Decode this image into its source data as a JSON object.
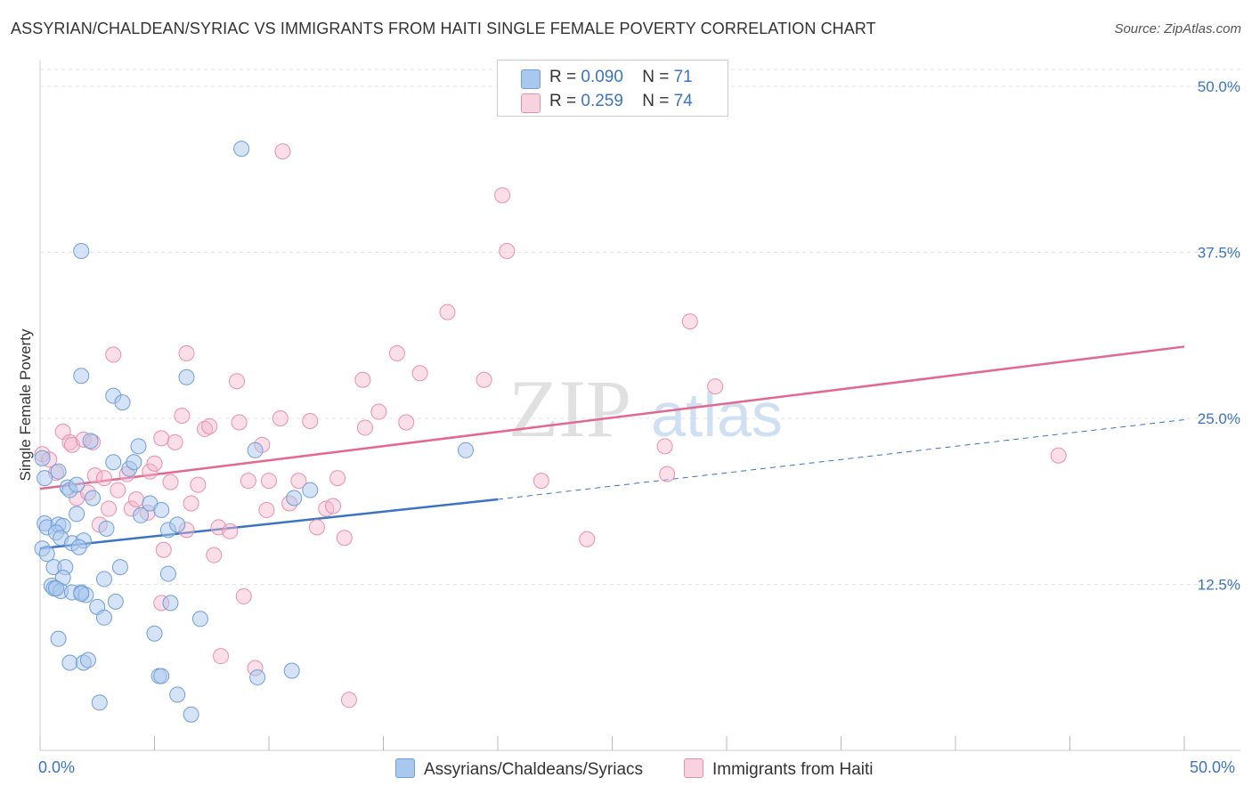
{
  "header": {
    "title": "ASSYRIAN/CHALDEAN/SYRIAC VS IMMIGRANTS FROM HAITI SINGLE FEMALE POVERTY CORRELATION CHART",
    "source": "Source: ZipAtlas.com"
  },
  "legend": {
    "row1": {
      "r_label": "R = ",
      "r_value": "0.090",
      "n_label": "N = ",
      "n_value": "71"
    },
    "row2": {
      "r_label": "R = ",
      "r_value": "0.259",
      "n_label": "N = ",
      "n_value": "74"
    }
  },
  "watermark": {
    "zip": "ZIP",
    "atlas": "atlas"
  },
  "colors": {
    "blue_fill": "#a9c8ee",
    "blue_stroke": "#6f9fd8",
    "blue_line": "#3a74c4",
    "pink_fill": "#f4b9cc",
    "pink_stroke": "#e98fae",
    "pink_line": "#e2688f",
    "axis_text": "#3a74c4"
  },
  "chart_data": {
    "type": "scatter",
    "title": "ASSYRIAN/CHALDEAN/SYRIAC VS IMMIGRANTS FROM HAITI SINGLE FEMALE POVERTY CORRELATION CHART",
    "xlabel": "",
    "ylabel": "Single Female Poverty",
    "xlim": [
      0,
      50
    ],
    "ylim": [
      0,
      50
    ],
    "x_tick_labels": [
      "0.0%",
      "50.0%"
    ],
    "y_tick_labels": [
      "50.0%",
      "37.5%",
      "25.0%",
      "12.5%"
    ],
    "y_ticks": [
      50,
      37.5,
      25,
      12.5
    ],
    "grid": true,
    "legend_position": "top-center",
    "series": [
      {
        "name": "Assyrians/Chaldeans/Syriacs",
        "color": "#6f9fd8",
        "R": 0.09,
        "N": 71,
        "trend": {
          "x_start": 0,
          "y_start": 15.2,
          "x_solid_end": 20,
          "y_solid_end": 18.9,
          "x_end": 50,
          "y_end": 24.9
        },
        "points": [
          [
            8.8,
            45.3
          ],
          [
            1.8,
            37.6
          ],
          [
            1.8,
            28.2
          ],
          [
            6.4,
            28.1
          ],
          [
            3.2,
            26.7
          ],
          [
            3.6,
            26.2
          ],
          [
            0.1,
            22.0
          ],
          [
            0.2,
            20.5
          ],
          [
            2.2,
            23.3
          ],
          [
            4.3,
            22.9
          ],
          [
            3.2,
            21.7
          ],
          [
            3.9,
            21.2
          ],
          [
            0.8,
            21.0
          ],
          [
            1.2,
            19.8
          ],
          [
            1.3,
            19.6
          ],
          [
            2.3,
            19.0
          ],
          [
            4.8,
            18.6
          ],
          [
            5.3,
            18.1
          ],
          [
            4.4,
            17.7
          ],
          [
            1.6,
            17.8
          ],
          [
            0.2,
            17.1
          ],
          [
            0.3,
            16.8
          ],
          [
            0.8,
            17.0
          ],
          [
            1.0,
            16.9
          ],
          [
            0.7,
            16.4
          ],
          [
            0.9,
            16.0
          ],
          [
            1.4,
            15.6
          ],
          [
            1.9,
            15.8
          ],
          [
            1.7,
            15.3
          ],
          [
            5.6,
            16.6
          ],
          [
            6.0,
            17.0
          ],
          [
            2.9,
            16.7
          ],
          [
            0.1,
            15.2
          ],
          [
            0.3,
            14.8
          ],
          [
            0.6,
            13.8
          ],
          [
            1.1,
            13.8
          ],
          [
            1.0,
            13.0
          ],
          [
            0.5,
            12.4
          ],
          [
            0.6,
            12.2
          ],
          [
            0.9,
            12.0
          ],
          [
            1.4,
            11.9
          ],
          [
            1.8,
            11.9
          ],
          [
            2.0,
            11.7
          ],
          [
            1.8,
            11.8
          ],
          [
            0.7,
            12.2
          ],
          [
            3.5,
            13.8
          ],
          [
            5.6,
            13.3
          ],
          [
            2.8,
            12.9
          ],
          [
            3.3,
            11.2
          ],
          [
            5.7,
            11.1
          ],
          [
            2.5,
            10.8
          ],
          [
            2.8,
            10.0
          ],
          [
            7.0,
            9.9
          ],
          [
            0.8,
            8.4
          ],
          [
            5.0,
            8.8
          ],
          [
            1.3,
            6.6
          ],
          [
            1.9,
            6.6
          ],
          [
            2.1,
            6.8
          ],
          [
            5.2,
            5.6
          ],
          [
            5.3,
            5.6
          ],
          [
            9.5,
            5.5
          ],
          [
            11.0,
            6.0
          ],
          [
            6.0,
            4.2
          ],
          [
            2.6,
            3.6
          ],
          [
            6.6,
            2.7
          ],
          [
            9.4,
            22.6
          ],
          [
            18.6,
            22.6
          ],
          [
            11.1,
            19.0
          ],
          [
            11.8,
            19.6
          ],
          [
            4.1,
            21.7
          ],
          [
            1.6,
            20.0
          ]
        ]
      },
      {
        "name": "Immigrants from Haiti",
        "color": "#e98fae",
        "R": 0.259,
        "N": 74,
        "trend": {
          "x_start": 0,
          "y_start": 19.7,
          "x_end": 50,
          "y_end": 30.4
        },
        "points": [
          [
            0.1,
            22.3
          ],
          [
            0.4,
            21.9
          ],
          [
            0.7,
            20.9
          ],
          [
            1.0,
            24.0
          ],
          [
            1.3,
            23.2
          ],
          [
            1.4,
            23.0
          ],
          [
            1.9,
            23.4
          ],
          [
            2.3,
            23.2
          ],
          [
            1.6,
            19.0
          ],
          [
            2.1,
            19.4
          ],
          [
            2.4,
            20.7
          ],
          [
            2.8,
            20.5
          ],
          [
            3.0,
            18.2
          ],
          [
            2.6,
            17.0
          ],
          [
            3.4,
            19.6
          ],
          [
            3.8,
            20.8
          ],
          [
            4.0,
            18.2
          ],
          [
            4.2,
            18.9
          ],
          [
            4.7,
            17.9
          ],
          [
            4.8,
            21.0
          ],
          [
            5.0,
            21.6
          ],
          [
            5.3,
            23.5
          ],
          [
            5.9,
            23.2
          ],
          [
            5.7,
            20.2
          ],
          [
            6.2,
            25.2
          ],
          [
            6.6,
            18.6
          ],
          [
            6.4,
            16.6
          ],
          [
            6.9,
            20.0
          ],
          [
            7.2,
            24.2
          ],
          [
            7.4,
            24.4
          ],
          [
            7.6,
            14.7
          ],
          [
            7.8,
            16.8
          ],
          [
            8.3,
            16.5
          ],
          [
            8.6,
            27.8
          ],
          [
            8.7,
            24.7
          ],
          [
            9.1,
            20.3
          ],
          [
            9.7,
            23.0
          ],
          [
            9.9,
            18.1
          ],
          [
            10.0,
            20.3
          ],
          [
            10.5,
            25.0
          ],
          [
            10.9,
            18.6
          ],
          [
            11.3,
            20.3
          ],
          [
            11.8,
            24.8
          ],
          [
            12.1,
            16.8
          ],
          [
            12.5,
            18.2
          ],
          [
            12.8,
            18.4
          ],
          [
            13.0,
            20.5
          ],
          [
            13.3,
            16.0
          ],
          [
            14.1,
            27.9
          ],
          [
            14.2,
            24.3
          ],
          [
            14.8,
            25.5
          ],
          [
            15.6,
            29.9
          ],
          [
            16.0,
            24.7
          ],
          [
            16.6,
            28.4
          ],
          [
            17.8,
            33.0
          ],
          [
            19.4,
            27.9
          ],
          [
            20.2,
            41.8
          ],
          [
            20.4,
            37.6
          ],
          [
            21.9,
            20.3
          ],
          [
            23.9,
            15.9
          ],
          [
            27.3,
            22.9
          ],
          [
            27.4,
            20.8
          ],
          [
            28.4,
            32.3
          ],
          [
            29.5,
            27.4
          ],
          [
            10.6,
            45.1
          ],
          [
            3.2,
            29.8
          ],
          [
            6.4,
            29.9
          ],
          [
            44.5,
            22.2
          ],
          [
            8.9,
            11.6
          ],
          [
            5.4,
            15.1
          ],
          [
            7.9,
            7.1
          ],
          [
            9.4,
            6.2
          ],
          [
            13.5,
            3.8
          ],
          [
            5.3,
            11.1
          ]
        ]
      }
    ]
  },
  "bottom_legend": {
    "series1": "Assyrians/Chaldeans/Syriacs",
    "series2": "Immigrants from Haiti"
  }
}
